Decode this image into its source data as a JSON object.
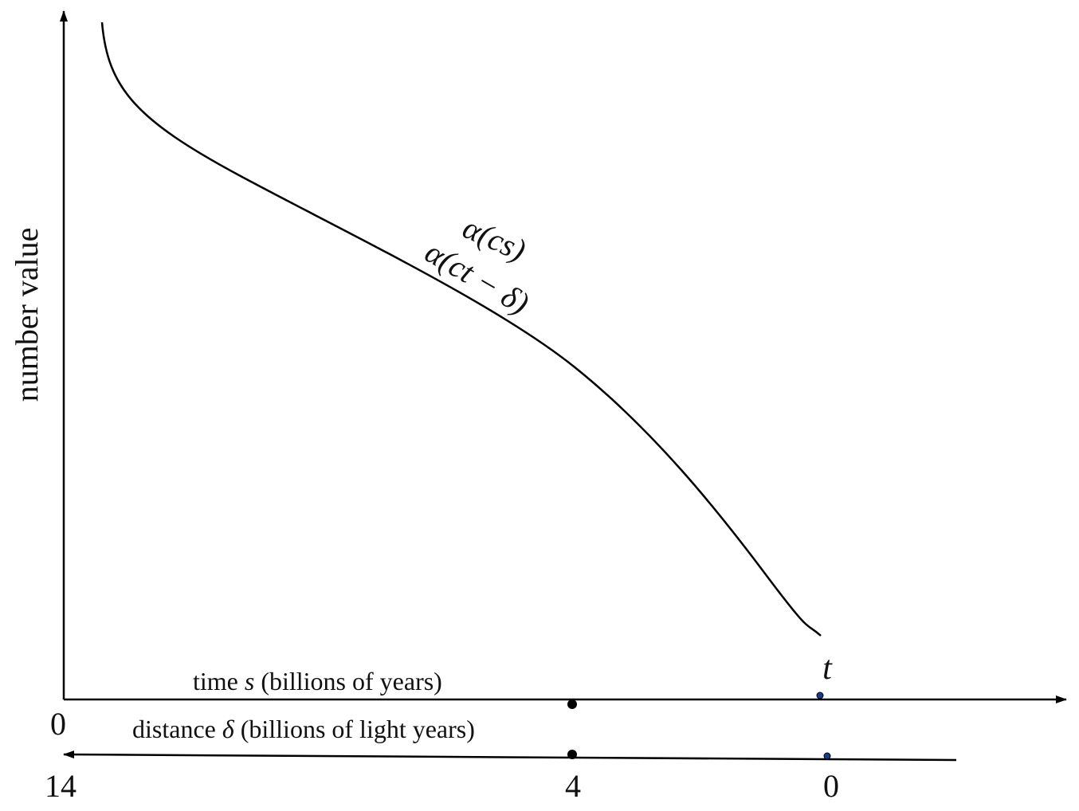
{
  "y_axis": {
    "label": "number value"
  },
  "curve": {
    "labels": [
      "α(cs)",
      "α(ct − δ)"
    ]
  },
  "marker": "t",
  "time_axis": {
    "label": [
      "time",
      "s",
      "(billions of years)"
    ],
    "ticks": [
      0
    ]
  },
  "distance_axis": {
    "label": [
      "distance",
      "δ",
      "(billions of light years)"
    ],
    "ticks": [
      14,
      4,
      0
    ]
  }
}
